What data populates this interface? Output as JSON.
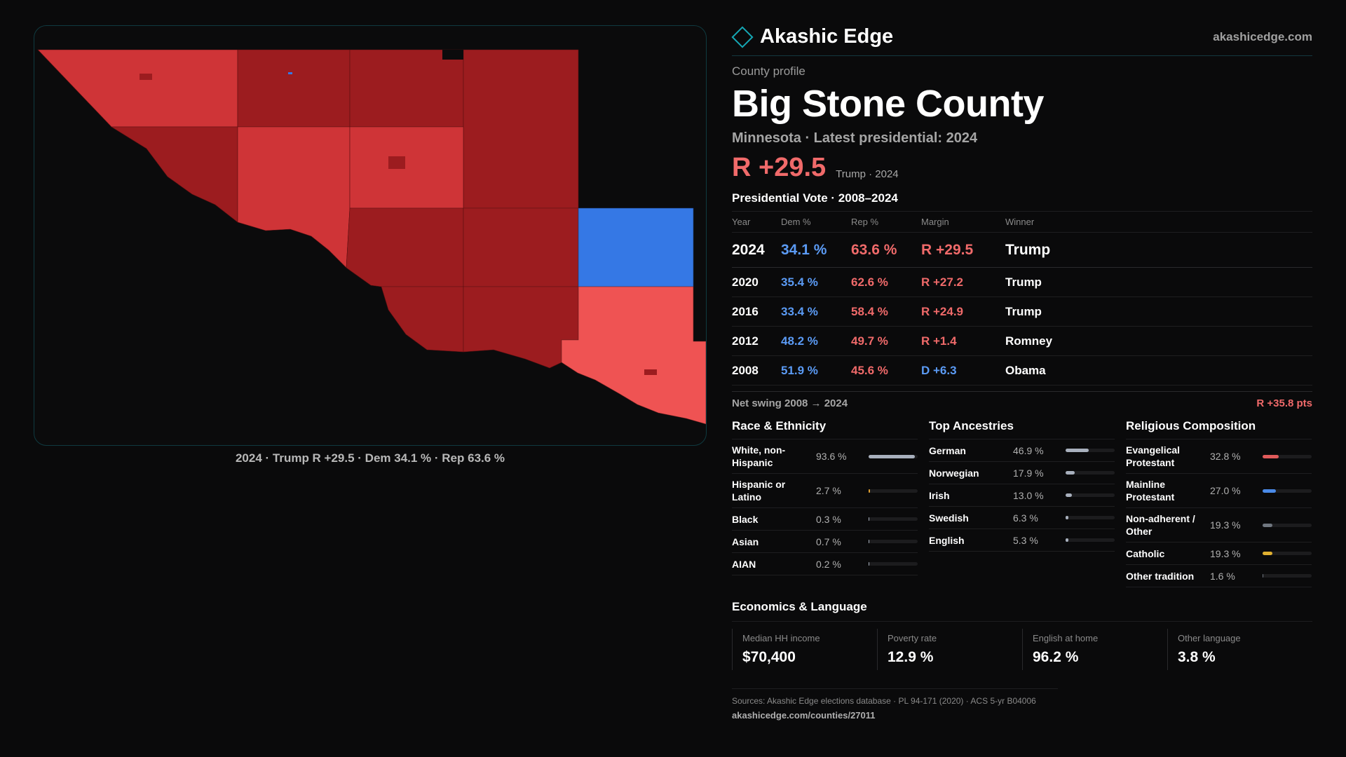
{
  "map": {
    "caption": "2024 · Trump R +29.5 · Dem 34.1 % · Rep 63.6 %",
    "colors": {
      "dark_red": "#9c1c1f",
      "red": "#cf3437",
      "light_red": "#ef5353",
      "blue": "#3578e5",
      "background": "#0b0b0c"
    }
  },
  "brand": {
    "name": "Akashic Edge",
    "url": "akashicedge.com",
    "accent": "#15a8b5"
  },
  "profile": {
    "label": "County profile",
    "name": "Big Stone County",
    "subtitle": "Minnesota · Latest presidential: 2024",
    "margin": "R +29.5",
    "margin_sub": "Trump · 2024"
  },
  "votes": {
    "title": "Presidential Vote · 2008–2024",
    "headers": {
      "year": "Year",
      "dem": "Dem %",
      "rep": "Rep %",
      "margin": "Margin",
      "winner": "Winner"
    },
    "rows": [
      {
        "year": "2024",
        "dem": "34.1 %",
        "rep": "63.6 %",
        "margin": "R +29.5",
        "winner": "Trump"
      },
      {
        "year": "2020",
        "dem": "35.4 %",
        "rep": "62.6 %",
        "margin": "R +27.2",
        "winner": "Trump"
      },
      {
        "year": "2016",
        "dem": "33.4 %",
        "rep": "58.4 %",
        "margin": "R +24.9",
        "winner": "Trump"
      },
      {
        "year": "2012",
        "dem": "48.2 %",
        "rep": "49.7 %",
        "margin": "R +1.4",
        "winner": "Romney"
      },
      {
        "year": "2008",
        "dem": "51.9 %",
        "rep": "45.6 %",
        "margin": "D +6.3",
        "winner": "Obama"
      }
    ],
    "swing_label": "Net swing 2008 → 2024",
    "swing_value": "R +35.8 pts"
  },
  "race": {
    "title": "Race & Ethnicity",
    "items": [
      {
        "label": "White, non-Hispanic",
        "value": "93.6 %",
        "pct": 93.6,
        "color": "#a8b0bd"
      },
      {
        "label": "Hispanic or Latino",
        "value": "2.7 %",
        "pct": 2.7,
        "color": "#e0a030"
      },
      {
        "label": "Black",
        "value": "0.3 %",
        "pct": 0.3,
        "color": "#a8b0bd"
      },
      {
        "label": "Asian",
        "value": "0.7 %",
        "pct": 0.7,
        "color": "#a8b0bd"
      },
      {
        "label": "AIAN",
        "value": "0.2 %",
        "pct": 0.2,
        "color": "#a8b0bd"
      }
    ]
  },
  "ancestry": {
    "title": "Top Ancestries",
    "items": [
      {
        "label": "German",
        "value": "46.9 %",
        "pct": 46.9,
        "color": "#a8b0bd"
      },
      {
        "label": "Norwegian",
        "value": "17.9 %",
        "pct": 17.9,
        "color": "#a8b0bd"
      },
      {
        "label": "Irish",
        "value": "13.0 %",
        "pct": 13.0,
        "color": "#a8b0bd"
      },
      {
        "label": "Swedish",
        "value": "6.3 %",
        "pct": 6.3,
        "color": "#a8b0bd"
      },
      {
        "label": "English",
        "value": "5.3 %",
        "pct": 5.3,
        "color": "#a8b0bd"
      }
    ]
  },
  "religion": {
    "title": "Religious Composition",
    "items": [
      {
        "label": "Evangelical Protestant",
        "value": "32.8 %",
        "pct": 32.8,
        "color": "#e05a5a"
      },
      {
        "label": "Mainline Protestant",
        "value": "27.0 %",
        "pct": 27.0,
        "color": "#4a8ae8"
      },
      {
        "label": "Non-adherent / Other",
        "value": "19.3 %",
        "pct": 19.3,
        "color": "#707780"
      },
      {
        "label": "Catholic",
        "value": "19.3 %",
        "pct": 19.3,
        "color": "#e0b030"
      },
      {
        "label": "Other tradition",
        "value": "1.6 %",
        "pct": 1.6,
        "color": "#707780"
      }
    ]
  },
  "economics": {
    "title": "Economics & Language",
    "cards": [
      {
        "label": "Median HH income",
        "value": "$70,400"
      },
      {
        "label": "Poverty rate",
        "value": "12.9 %"
      },
      {
        "label": "English at home",
        "value": "96.2 %"
      },
      {
        "label": "Other language",
        "value": "3.8 %"
      }
    ]
  },
  "footer": {
    "sources": "Sources: Akashic Edge elections database · PL 94-171 (2020) · ACS 5-yr B04006",
    "url": "akashicedge.com/counties/27011"
  }
}
